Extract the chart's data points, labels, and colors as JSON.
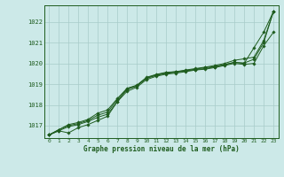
{
  "title": "",
  "xlabel": "Graphe pression niveau de la mer (hPa)",
  "ylabel": "",
  "bg_color": "#cce9e8",
  "line_color": "#1e5c1e",
  "grid_color": "#a8cbc9",
  "xlim": [
    -0.5,
    23.5
  ],
  "ylim": [
    1016.4,
    1022.8
  ],
  "yticks": [
    1017,
    1018,
    1019,
    1020,
    1021,
    1022
  ],
  "xticks": [
    0,
    1,
    2,
    3,
    4,
    5,
    6,
    7,
    8,
    9,
    10,
    11,
    12,
    13,
    14,
    15,
    16,
    17,
    18,
    19,
    20,
    21,
    22,
    23
  ],
  "series": [
    [
      1016.55,
      1016.75,
      1016.65,
      1016.9,
      1017.05,
      1017.25,
      1017.45,
      1018.15,
      1018.75,
      1018.9,
      1019.3,
      1019.45,
      1019.55,
      1019.6,
      1019.65,
      1019.72,
      1019.8,
      1019.85,
      1019.95,
      1020.05,
      1020.0,
      1020.75,
      1021.5,
      1022.5
    ],
    [
      1016.55,
      1016.75,
      1016.95,
      1017.05,
      1017.2,
      1017.4,
      1017.55,
      1018.15,
      1018.65,
      1018.85,
      1019.22,
      1019.38,
      1019.48,
      1019.53,
      1019.6,
      1019.68,
      1019.72,
      1019.8,
      1019.9,
      1020.0,
      1019.95,
      1020.0,
      1020.85,
      1021.5
    ],
    [
      1016.55,
      1016.8,
      1017.0,
      1017.1,
      1017.25,
      1017.5,
      1017.65,
      1018.25,
      1018.75,
      1018.92,
      1019.28,
      1019.42,
      1019.52,
      1019.57,
      1019.63,
      1019.7,
      1019.75,
      1019.83,
      1019.93,
      1020.05,
      1020.02,
      1020.2,
      1021.0,
      1022.5
    ],
    [
      1016.55,
      1016.8,
      1017.05,
      1017.15,
      1017.3,
      1017.6,
      1017.75,
      1018.3,
      1018.8,
      1018.95,
      1019.33,
      1019.47,
      1019.57,
      1019.6,
      1019.68,
      1019.75,
      1019.82,
      1019.9,
      1020.0,
      1020.15,
      1020.22,
      1020.3,
      1021.1,
      1022.5
    ]
  ]
}
